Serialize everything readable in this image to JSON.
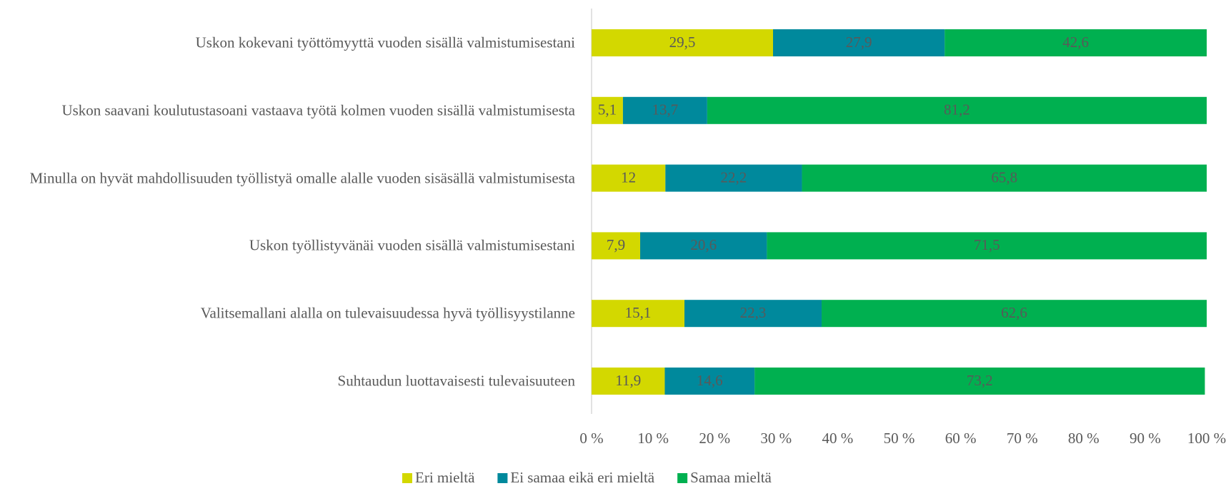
{
  "chart_data": {
    "type": "stacked_bar_horizontal",
    "categories": [
      "Uskon kokevani työttömyyttä vuoden sisällä valmistumisestani",
      "Uskon saavani koulutustasoani vastaava työtä kolmen vuoden sisällä valmistumisesta",
      "Minulla on hyvät mahdollisuuden työllistyä omalle alalle vuoden sisäsällä valmistumisesta",
      "Uskon työllistyvänäi vuoden sisällä valmistumisestani",
      "Valitsemallani alalla on tulevaisuudessa hyvä työllisyystilanne",
      "Suhtaudun luottavaisesti tulevaisuuteen"
    ],
    "series": [
      {
        "name": "Eri mieltä",
        "color": "#d3d800",
        "values": [
          29.5,
          5.1,
          12,
          7.9,
          15.1,
          11.9
        ],
        "value_labels": [
          "29,5",
          "5,1",
          "12",
          "7,9",
          "15,1",
          "11,9"
        ]
      },
      {
        "name": "Ei samaa eikä eri mieltä",
        "color": "#00899c",
        "values": [
          27.9,
          13.7,
          22.2,
          20.6,
          22.3,
          14.6
        ],
        "value_labels": [
          "27,9",
          "13,7",
          "22,2",
          "20,6",
          "22,3",
          "14,6"
        ]
      },
      {
        "name": "Samaa mieltä",
        "color": "#00b050",
        "values": [
          42.6,
          81.2,
          65.8,
          71.5,
          62.6,
          73.2
        ],
        "value_labels": [
          "42,6",
          "81,2",
          "65,8",
          "71,5",
          "62,6",
          "73,2"
        ]
      }
    ],
    "xlim": [
      0,
      100
    ],
    "xticks": [
      {
        "value": 0,
        "label": "0 %"
      },
      {
        "value": 10,
        "label": "10 %"
      },
      {
        "value": 20,
        "label": "20 %"
      },
      {
        "value": 30,
        "label": "30 %"
      },
      {
        "value": 40,
        "label": "40 %"
      },
      {
        "value": 50,
        "label": "50 %"
      },
      {
        "value": 60,
        "label": "60 %"
      },
      {
        "value": 70,
        "label": "70 %"
      },
      {
        "value": 80,
        "label": "80 %"
      },
      {
        "value": 90,
        "label": "90 %"
      },
      {
        "value": 100,
        "label": "100 %"
      }
    ],
    "legend": "bottom"
  }
}
